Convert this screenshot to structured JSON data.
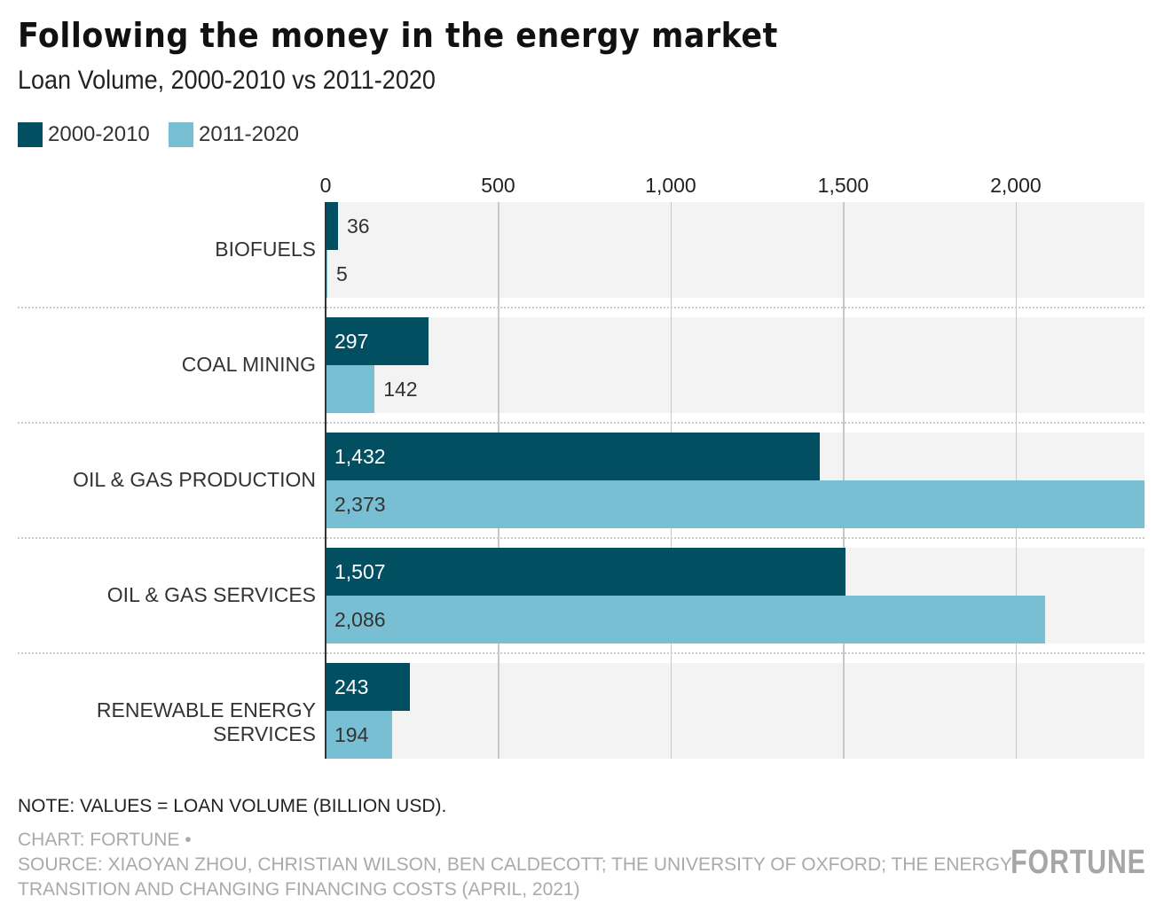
{
  "chart_data": {
    "type": "bar",
    "orientation": "horizontal",
    "title": "Following the money in the energy market",
    "subtitle": "Loan Volume, 2000-2010 vs 2011-2020",
    "categories": [
      "BIOFUELS",
      "COAL MINING",
      "OIL & GAS PRODUCTION",
      "OIL & GAS SERVICES",
      "RENEWABLE ENERGY SERVICES"
    ],
    "series": [
      {
        "name": "2000-2010",
        "color": "#034f62",
        "values": [
          36,
          297,
          1432,
          1507,
          243
        ],
        "labels": [
          "36",
          "297",
          "1,432",
          "1,507",
          "243"
        ]
      },
      {
        "name": "2011-2020",
        "color": "#78bfd4",
        "values": [
          5,
          142,
          2373,
          2086,
          194
        ],
        "labels": [
          "5",
          "142",
          "2,373",
          "2,086",
          "194"
        ]
      }
    ],
    "xlim": [
      0,
      2373
    ],
    "xticks": [
      0,
      500,
      1000,
      1500,
      2000
    ],
    "xtick_labels": [
      "0",
      "500",
      "1,000",
      "1,500",
      "2,000"
    ],
    "grid": true,
    "legend": "top-left"
  },
  "note": "NOTE: VALUES = LOAN VOLUME (BILLION USD).",
  "credit": "CHART: FORTUNE •",
  "source_line1": "SOURCE: XIAOYAN ZHOU, CHRISTIAN WILSON, BEN CALDECOTT; THE UNIVERSITY OF OXFORD; THE ENERGY",
  "source_line2": "TRANSITION AND CHANGING FINANCING COSTS (APRIL, 2021)",
  "logo": "FORTUNE"
}
